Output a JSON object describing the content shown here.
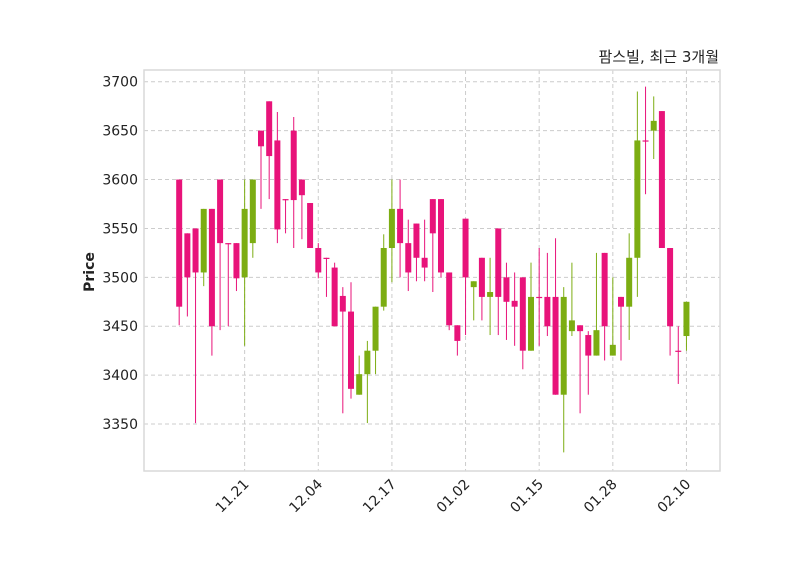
{
  "chart_data": {
    "type": "candlestick",
    "title": "팜스빌, 최근 3개월",
    "xlabel": "",
    "ylabel": "Price",
    "ylim": [
      3302,
      3712
    ],
    "xlim": [
      -4.3,
      66.1
    ],
    "yticks": [
      3350,
      3400,
      3450,
      3500,
      3550,
      3600,
      3650,
      3700
    ],
    "xticks": [
      {
        "index": 8,
        "label": "11.21"
      },
      {
        "index": 17,
        "label": "12.04"
      },
      {
        "index": 26,
        "label": "12.17"
      },
      {
        "index": 35,
        "label": "01.02"
      },
      {
        "index": 44,
        "label": "01.15"
      },
      {
        "index": 53,
        "label": "01.28"
      },
      {
        "index": 62,
        "label": "02.10"
      }
    ],
    "grid": true,
    "colors": {
      "up": "#e8137a",
      "down": "#7cad12",
      "grid": "#cccccc",
      "frame": "#d9d9d9"
    },
    "ohlc": [
      [
        3470,
        3600,
        3451,
        3600
      ],
      [
        3500,
        3545,
        3460,
        3545
      ],
      [
        3505,
        3550,
        3351,
        3550
      ],
      [
        3570,
        3570,
        3491,
        3505
      ],
      [
        3450,
        3570,
        3420,
        3570
      ],
      [
        3535,
        3600,
        3446,
        3600
      ],
      [
        3535,
        3535,
        3450,
        3535
      ],
      [
        3499,
        3535,
        3486,
        3535
      ],
      [
        3570,
        3600,
        3430,
        3500
      ],
      [
        3600,
        3600,
        3520,
        3535
      ],
      [
        3634,
        3650,
        3570,
        3650
      ],
      [
        3624,
        3680,
        3580,
        3680
      ],
      [
        3549,
        3669,
        3535,
        3640
      ],
      [
        3580,
        3580,
        3545,
        3580
      ],
      [
        3579,
        3664,
        3530,
        3650
      ],
      [
        3584,
        3600,
        3539,
        3600
      ],
      [
        3530,
        3576,
        3530,
        3576
      ],
      [
        3505,
        3535,
        3499,
        3530
      ],
      [
        3520,
        3520,
        3480,
        3520
      ],
      [
        3450,
        3515,
        3450,
        3510
      ],
      [
        3465,
        3490,
        3361,
        3481
      ],
      [
        3386,
        3495,
        3376,
        3465
      ],
      [
        3401,
        3420,
        3380,
        3380
      ],
      [
        3425,
        3435,
        3351,
        3401
      ],
      [
        3470,
        3470,
        3401,
        3425
      ],
      [
        3530,
        3544,
        3466,
        3470
      ],
      [
        3570,
        3600,
        3495,
        3530
      ],
      [
        3535,
        3600,
        3500,
        3570
      ],
      [
        3505,
        3559,
        3486,
        3535
      ],
      [
        3520,
        3555,
        3496,
        3555
      ],
      [
        3510,
        3559,
        3496,
        3520
      ],
      [
        3545,
        3580,
        3485,
        3580
      ],
      [
        3505,
        3580,
        3500,
        3580
      ],
      [
        3451,
        3505,
        3446,
        3505
      ],
      [
        3435,
        3451,
        3420,
        3451
      ],
      [
        3500,
        3560,
        3441,
        3560
      ],
      [
        3496,
        3496,
        3456,
        3490
      ],
      [
        3480,
        3520,
        3456,
        3520
      ],
      [
        3485,
        3520,
        3441,
        3480
      ],
      [
        3480,
        3550,
        3441,
        3550
      ],
      [
        3475,
        3515,
        3436,
        3500
      ],
      [
        3470,
        3505,
        3430,
        3476
      ],
      [
        3425,
        3500,
        3406,
        3500
      ],
      [
        3480,
        3515,
        3425,
        3425
      ],
      [
        3480,
        3530,
        3430,
        3480
      ],
      [
        3450,
        3525,
        3440,
        3480
      ],
      [
        3380,
        3540,
        3380,
        3480
      ],
      [
        3480,
        3490,
        3321,
        3380
      ],
      [
        3456,
        3515,
        3440,
        3445
      ],
      [
        3445,
        3451,
        3361,
        3451
      ],
      [
        3420,
        3445,
        3380,
        3441
      ],
      [
        3446,
        3525,
        3420,
        3420
      ],
      [
        3450,
        3525,
        3415,
        3525
      ],
      [
        3431,
        3500,
        3420,
        3420
      ],
      [
        3470,
        3480,
        3415,
        3480
      ],
      [
        3520,
        3545,
        3436,
        3470
      ],
      [
        3640,
        3690,
        3480,
        3520
      ],
      [
        3640,
        3695,
        3585,
        3640
      ],
      [
        3660,
        3685,
        3621,
        3650
      ],
      [
        3530,
        3670,
        3530,
        3670
      ],
      [
        3450,
        3530,
        3420,
        3530
      ],
      [
        3425,
        3450,
        3391,
        3425
      ],
      [
        3475,
        3475,
        3425,
        3440
      ]
    ]
  }
}
